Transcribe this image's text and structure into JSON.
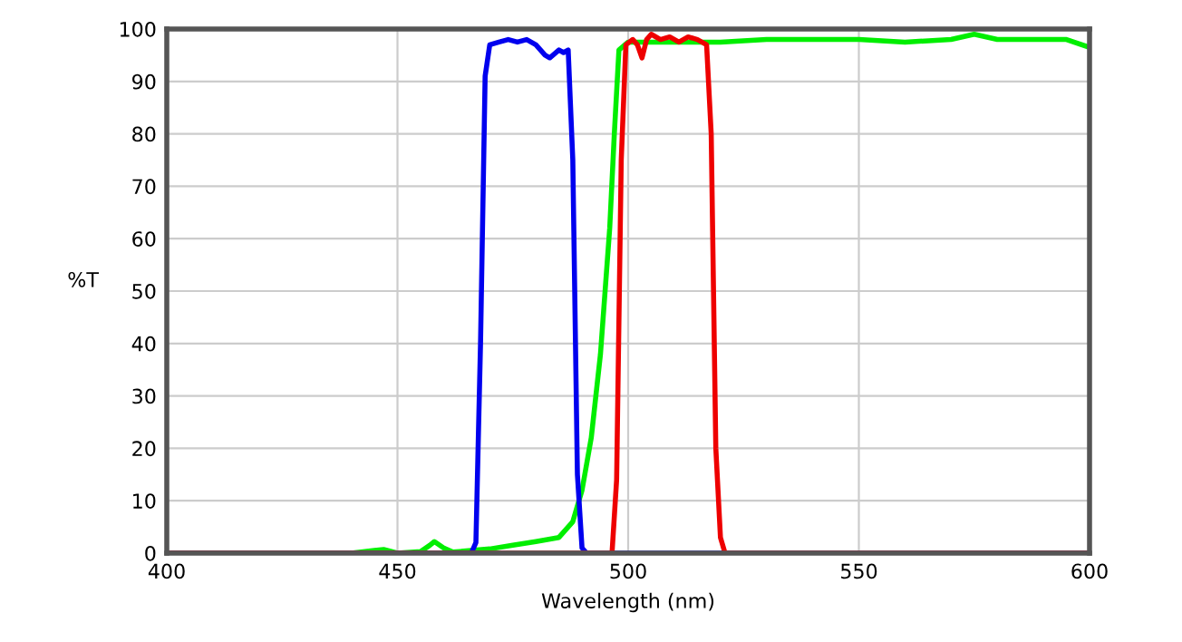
{
  "chart_data": {
    "type": "line",
    "xlabel": "Wavelength (nm)",
    "ylabel": "%T",
    "xlim": [
      400,
      600
    ],
    "ylim": [
      0,
      100
    ],
    "xticks": [
      400,
      450,
      500,
      550,
      600
    ],
    "yticks": [
      0,
      10,
      20,
      30,
      40,
      50,
      60,
      70,
      80,
      90,
      100
    ],
    "grid": true,
    "series": [
      {
        "color": "#00ee00",
        "x": [
          400,
          440,
          445,
          447,
          450,
          455,
          457,
          458,
          460,
          462,
          470,
          475,
          480,
          485,
          488,
          490,
          492,
          494,
          495,
          496,
          497,
          498,
          500,
          510,
          520,
          530,
          540,
          550,
          560,
          570,
          575,
          580,
          590,
          595,
          600
        ],
        "values": [
          0,
          0,
          0.5,
          0.7,
          0,
          0.3,
          1.5,
          2.2,
          1,
          0.2,
          0.8,
          1.5,
          2.2,
          3,
          6,
          12,
          22,
          38,
          50,
          62,
          80,
          96,
          97.5,
          97.5,
          97.5,
          98,
          98,
          98,
          97.5,
          98,
          99,
          98,
          98,
          98,
          96.5
        ]
      },
      {
        "color": "#0000ee",
        "x": [
          400,
          466,
          467,
          468,
          469,
          470,
          472,
          474,
          476,
          478,
          480,
          482,
          483,
          485,
          486,
          487,
          488,
          489,
          490,
          491,
          600
        ],
        "values": [
          0,
          0,
          2,
          40,
          91,
          97,
          97.5,
          98,
          97.5,
          98,
          97,
          95,
          94.5,
          96,
          95.5,
          96,
          75,
          15,
          1,
          0,
          0
        ]
      },
      {
        "color": "#ee0000",
        "x": [
          400,
          496.5,
          497.5,
          498.5,
          499.5,
          501,
          502,
          503,
          504,
          505,
          507,
          509,
          511,
          513,
          515,
          517,
          518,
          519,
          520,
          521,
          600
        ],
        "values": [
          0,
          0,
          14,
          75,
          97,
          98,
          97,
          94.5,
          98,
          99,
          98,
          98.5,
          97.5,
          98.5,
          98,
          97,
          80,
          20,
          3,
          0,
          0
        ]
      }
    ]
  }
}
